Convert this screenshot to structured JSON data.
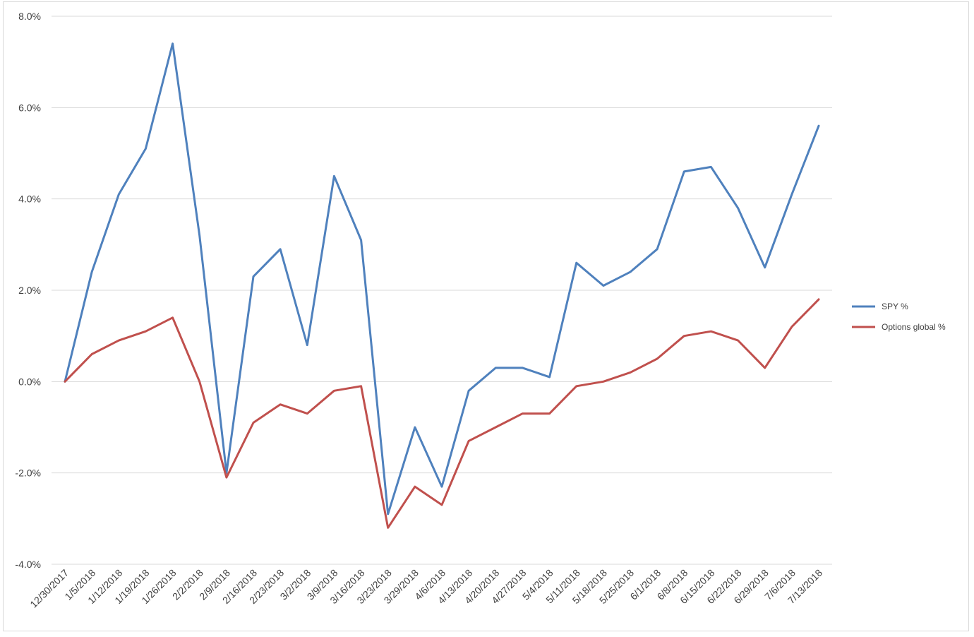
{
  "chart_data": {
    "type": "line",
    "title": "",
    "xlabel": "",
    "ylabel": "",
    "categories": [
      "12/30/2017",
      "1/5/2018",
      "1/12/2018",
      "1/19/2018",
      "1/26/2018",
      "2/2/2018",
      "2/9/2018",
      "2/16/2018",
      "2/23/2018",
      "3/2/2018",
      "3/9/2018",
      "3/16/2018",
      "3/23/2018",
      "3/29/2018",
      "4/6/2018",
      "4/13/2018",
      "4/20/2018",
      "4/27/2018",
      "5/4/2018",
      "5/11/2018",
      "5/18/2018",
      "5/25/2018",
      "6/1/2018",
      "6/8/2018",
      "6/15/2018",
      "6/22/2018",
      "6/29/2018",
      "7/6/2018",
      "7/13/2018"
    ],
    "y_ticks": [
      "-4.0%",
      "-2.0%",
      "0.0%",
      "2.0%",
      "4.0%",
      "6.0%",
      "8.0%"
    ],
    "ylim": [
      -4.0,
      8.0
    ],
    "y_unit": "%",
    "grid": true,
    "legend_position": "right",
    "series": [
      {
        "name": "SPY %",
        "color": "#4f81bd",
        "values": [
          0.0,
          2.4,
          4.1,
          5.1,
          7.4,
          3.2,
          -2.0,
          2.3,
          2.9,
          0.8,
          4.5,
          3.1,
          -2.9,
          -1.0,
          -2.3,
          -0.2,
          0.3,
          0.3,
          0.1,
          2.6,
          2.1,
          2.4,
          2.9,
          4.6,
          4.7,
          3.8,
          2.5,
          4.1,
          5.6
        ]
      },
      {
        "name": "Options global %",
        "color": "#c0504d",
        "values": [
          0.0,
          0.6,
          0.9,
          1.1,
          1.4,
          0.0,
          -2.1,
          -0.9,
          -0.5,
          -0.7,
          -0.2,
          -0.1,
          -3.2,
          -2.3,
          -2.7,
          -1.3,
          -1.0,
          -0.7,
          -0.7,
          -0.1,
          0.0,
          0.2,
          0.5,
          1.0,
          1.1,
          0.9,
          0.3,
          1.2,
          1.8
        ]
      }
    ]
  }
}
